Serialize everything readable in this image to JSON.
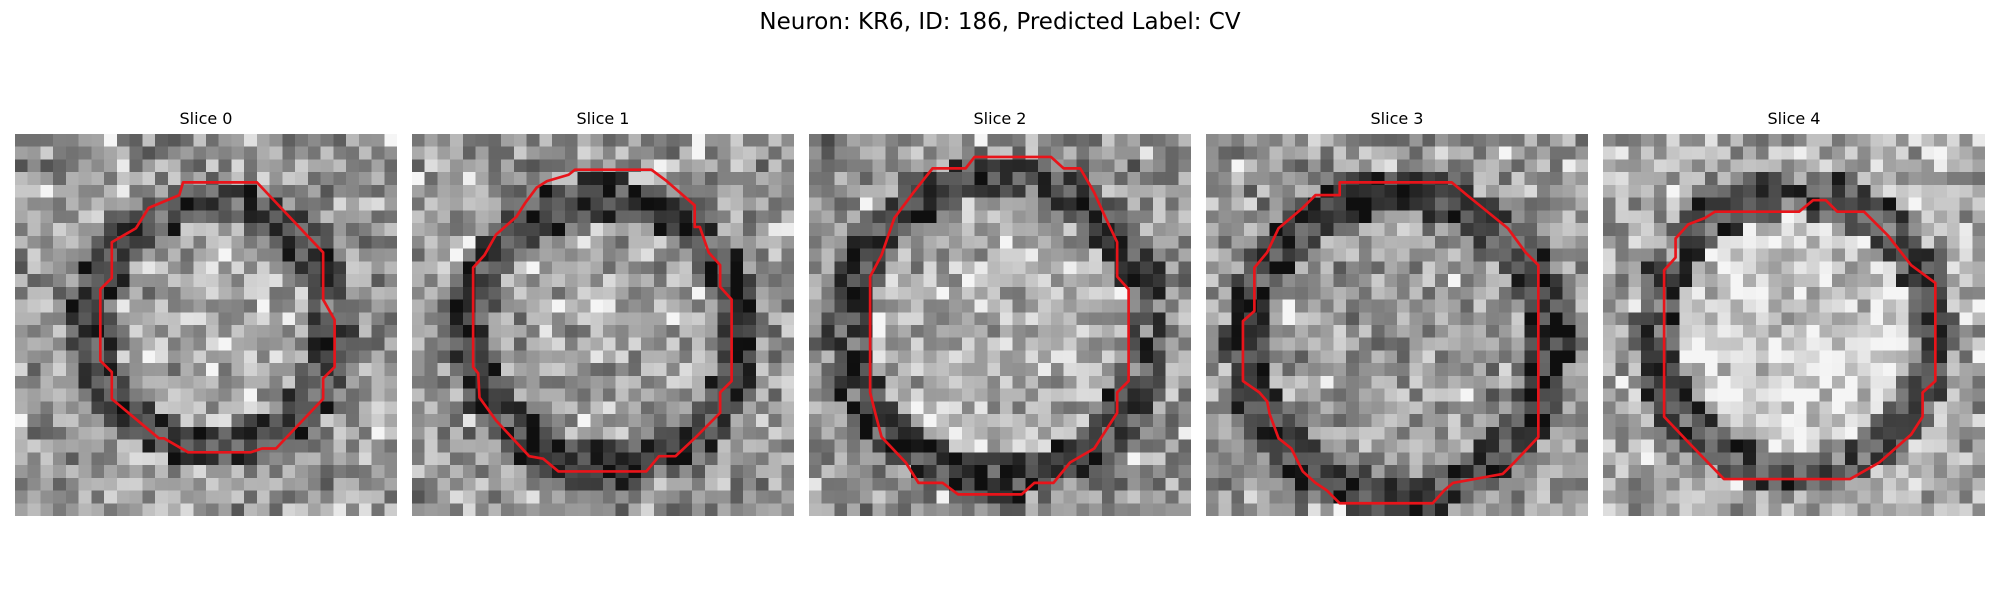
{
  "figure": {
    "title": "Neuron: KR6, ID: 186, Predicted Label: CV"
  },
  "contour_color": "#e8141a",
  "panels": [
    {
      "title": "Slice 0"
    },
    {
      "title": "Slice 1"
    },
    {
      "title": "Slice 2"
    },
    {
      "title": "Slice 3"
    },
    {
      "title": "Slice 4"
    }
  ]
}
